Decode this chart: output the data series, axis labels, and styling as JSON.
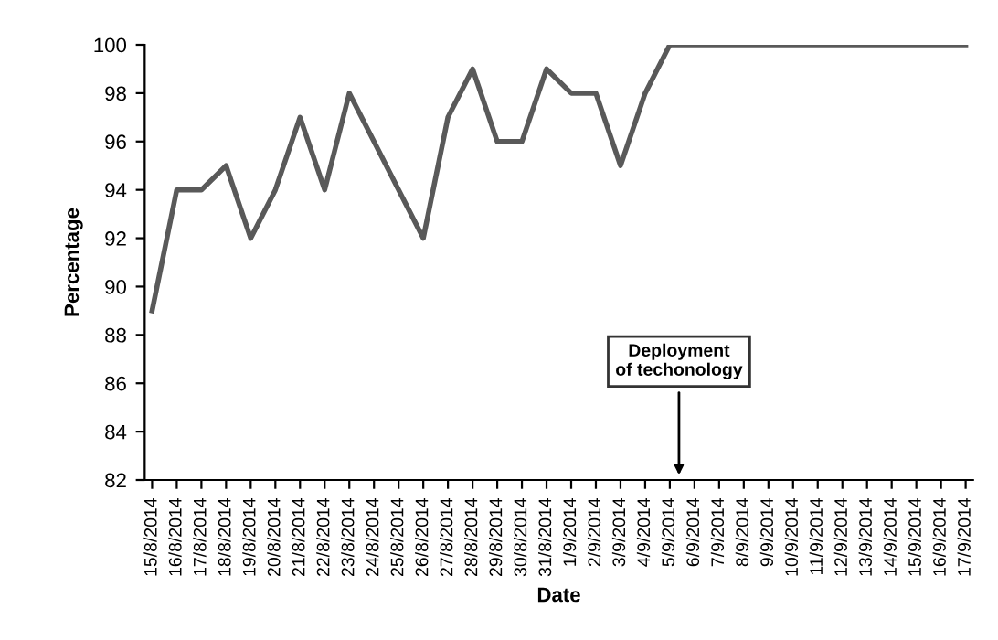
{
  "chart_data": {
    "type": "line",
    "xlabel": "Date",
    "ylabel": "Percentage",
    "categories": [
      "15/8/2014",
      "16/8/2014",
      "17/8/2014",
      "18/8/2014",
      "19/8/2014",
      "20/8/2014",
      "21/8/2014",
      "22/8/2014",
      "23/8/2014",
      "24/8/2014",
      "25/8/2014",
      "26/8/2014",
      "27/8/2014",
      "28/8/2014",
      "29/8/2014",
      "30/8/2014",
      "31/8/2014",
      "1/9/2014",
      "2/9/2014",
      "3/9/2014",
      "4/9/2014",
      "5/9/2014",
      "6/9/2014",
      "7/9/2014",
      "8/9/2014",
      "9/9/2014",
      "10/9/2014",
      "11/9/2014",
      "12/9/2014",
      "13/9/2014",
      "14/9/2014",
      "15/9/2014",
      "16/9/2014",
      "17/9/2014"
    ],
    "series": [
      {
        "color": "#595959",
        "values": [
          89,
          94,
          94,
          95,
          92,
          94,
          97,
          94,
          98,
          96,
          94,
          92,
          97,
          99,
          96,
          96,
          99,
          98,
          98,
          95,
          98,
          100,
          100,
          100,
          100,
          100,
          100,
          100,
          100,
          100,
          100,
          100,
          100,
          100
        ]
      }
    ],
    "ylim": [
      82,
      100
    ],
    "yticks": [
      82,
      84,
      86,
      88,
      90,
      92,
      94,
      96,
      98,
      100
    ],
    "grid": false,
    "legend": false,
    "marker": "none",
    "line_style": "solid",
    "annotations": [
      "Deployment\nof techonology"
    ]
  }
}
